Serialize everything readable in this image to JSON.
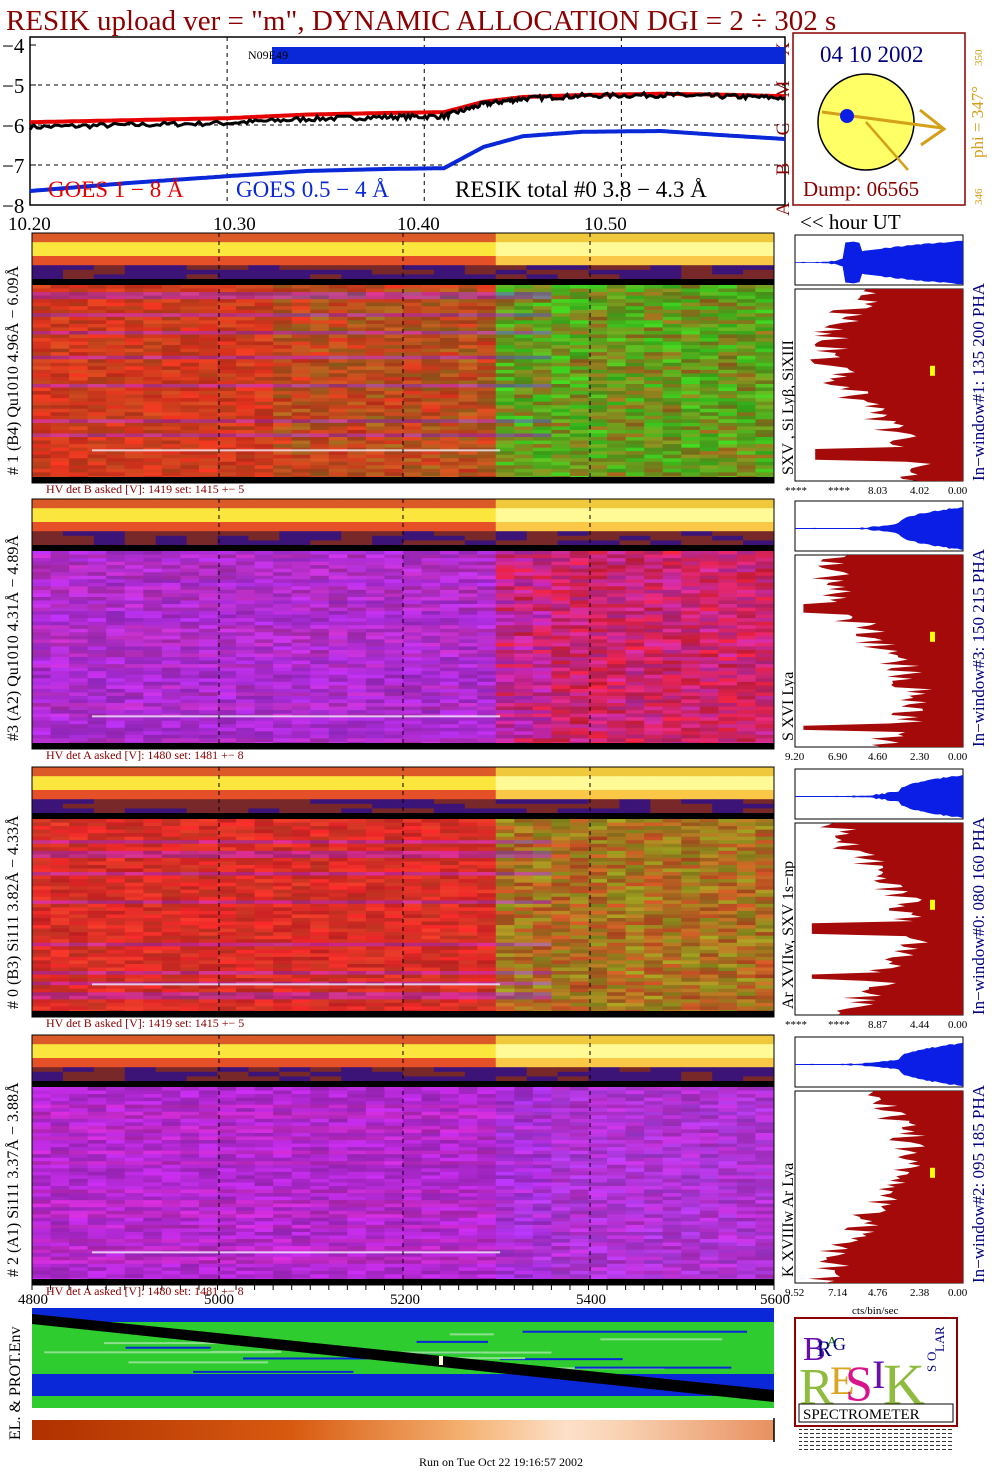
{
  "title": "RESIK upload ver = \"m\", DYNAMIC ALLOCATION  DGI =   2 ÷ 302 s",
  "colors": {
    "dark_red": "#8b0000",
    "navy": "#000080",
    "goes_long": "#e60000",
    "goes_short": "#0a28d8",
    "resik": "#000000",
    "spectrum_fill": "#a50a0a",
    "pha_fill": "#0a1ee6",
    "orbit_yellow": "#ffff66",
    "orbit_arrow": "#d4a017"
  },
  "chart_data": [
    {
      "type": "line",
      "title": "",
      "xlabel": "<< hour UT",
      "x_ticks": [
        "10.20",
        "10.30",
        "10.40",
        "10.50"
      ],
      "xlim": [
        10.2,
        10.583
      ],
      "ylim": [
        -8,
        -3.8
      ],
      "y_ticks": [
        "−4",
        "−5",
        "−6",
        "−7",
        "−8"
      ],
      "class_labels": [
        "X",
        "M",
        "C",
        "B",
        "A"
      ],
      "grid": true,
      "annotation": "N09E49",
      "series": [
        {
          "name": "GOES 1 − 8 Å",
          "x": [
            10.2,
            10.25,
            10.3,
            10.34,
            10.38,
            10.41,
            10.43,
            10.45,
            10.48,
            10.52,
            10.55,
            10.583
          ],
          "y": [
            -5.93,
            -5.88,
            -5.83,
            -5.74,
            -5.7,
            -5.68,
            -5.42,
            -5.3,
            -5.25,
            -5.22,
            -5.24,
            -5.28
          ]
        },
        {
          "name": "GOES 0.5 − 4 Å",
          "x": [
            10.2,
            10.25,
            10.3,
            10.34,
            10.38,
            10.41,
            10.43,
            10.45,
            10.48,
            10.52,
            10.55,
            10.583
          ],
          "y": [
            -7.65,
            -7.45,
            -7.28,
            -7.15,
            -7.1,
            -7.08,
            -6.55,
            -6.28,
            -6.17,
            -6.15,
            -6.25,
            -6.35
          ]
        },
        {
          "name": "RESIK total #0  3.8 − 4.3 Å",
          "x": [
            10.2,
            10.25,
            10.3,
            10.34,
            10.38,
            10.41,
            10.43,
            10.45,
            10.48,
            10.52,
            10.55,
            10.583
          ],
          "y": [
            -6.05,
            -6.0,
            -5.95,
            -5.85,
            -5.8,
            -5.78,
            -5.48,
            -5.34,
            -5.27,
            -5.25,
            -5.28,
            -5.32
          ]
        }
      ]
    }
  ],
  "orbit": {
    "date": "04 10 2002",
    "phi": "phi = 347°",
    "scale_top": "350",
    "scale_bottom": "346",
    "dump": "Dump: 06565"
  },
  "panels": [
    {
      "label": "# 1 (B4) Qu1010 4.96Å − 6.09Å",
      "lines": "SXV , Si Lyβ, SiXIII",
      "window": "In−window#1:  135 200 PHA",
      "hv": "HV det B asked [V]:  1419 set:  1415  +−    5",
      "ticks": [
        "****",
        "****",
        "8.03",
        "4.02",
        "0.00"
      ],
      "base_rgb": [
        235,
        40,
        30
      ],
      "shift_rgb": [
        60,
        200,
        30
      ],
      "purple_bias": 0.15
    },
    {
      "label": "#3 (A2) Qu1010  4.31Å − 4.89Å",
      "lines": "S XVI Lya",
      "window": "In−window#3:  150 215 PHA",
      "hv": "HV det A asked [V]:  1480 set:  1481  +−    8",
      "ticks": [
        "9.20",
        "6.90",
        "4.60",
        "2.30",
        "0.00"
      ],
      "base_rgb": [
        180,
        50,
        230
      ],
      "shift_rgb": [
        230,
        30,
        40
      ],
      "purple_bias": 0.55
    },
    {
      "label": "# 0 (B3) Si111  3.82Å − 4.33Å",
      "lines": "Ar XVIIw,  SXV 1s−np",
      "window": "In−window#0:  080 160 PHA",
      "hv": "HV det B asked [V]:  1419 set:  1415  +−    5",
      "ticks": [
        "****",
        "****",
        "8.87",
        "4.44",
        "0.00"
      ],
      "base_rgb": [
        235,
        30,
        40
      ],
      "shift_rgb": [
        140,
        170,
        30
      ],
      "purple_bias": 0.25
    },
    {
      "label": "# 2 (A1) Si111  3.37Å − 3.88Å",
      "lines": "K XVIIIw  Ar Lya",
      "window": "In−window#2:  095 185 PHA",
      "hv": "HV det A asked [V]:  1480 set:  1481  +−    8",
      "ticks": [
        "9.52",
        "7.14",
        "4.76",
        "2.38",
        "0.00"
      ],
      "base_rgb": [
        200,
        40,
        200
      ],
      "shift_rgb": [
        170,
        60,
        230
      ],
      "purple_bias": 0.6
    }
  ],
  "spectrum_xlabel": "cts/bin/sec",
  "bottom_axis_ticks": [
    "4800",
    "5000",
    "5200",
    "5400",
    "5600"
  ],
  "env_label": "EL. & PROT.Env",
  "logo": {
    "letters": [
      "B",
      "R",
      "A",
      "G",
      "R",
      "E",
      "S",
      "I",
      "K",
      "S",
      "O",
      "L",
      "A",
      "R"
    ],
    "word": "SPECTROMETER"
  },
  "footer": "Run on Tue Oct 22 19:16:57 2002"
}
